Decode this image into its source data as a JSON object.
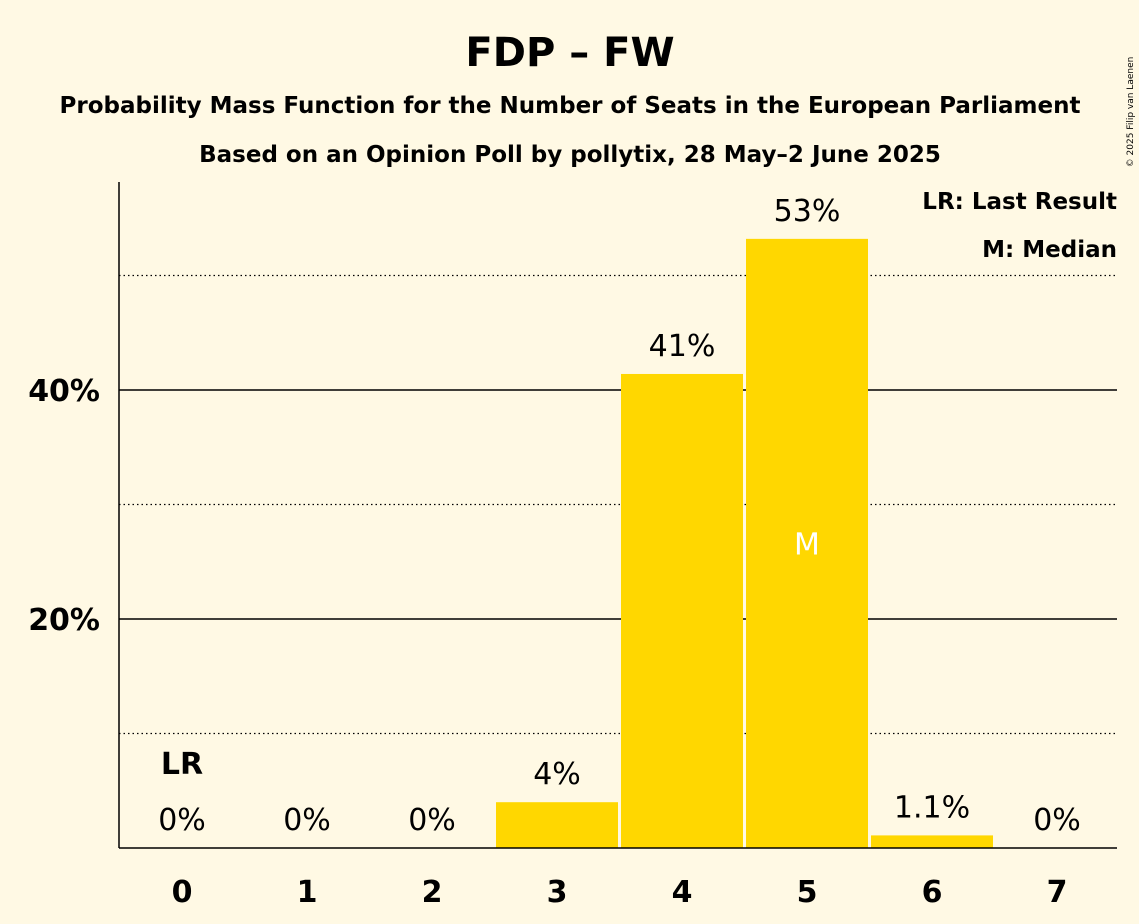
{
  "chart_data": {
    "type": "bar",
    "title": "FDP – FW",
    "subtitle": "Probability Mass Function for the Number of Seats in the European Parliament",
    "subtitle2": "Based on an Opinion Poll by pollytix, 28 May–2 June 2025",
    "copyright": "© 2025 Filip van Laenen",
    "categories": [
      "0",
      "1",
      "2",
      "3",
      "4",
      "5",
      "6",
      "7"
    ],
    "values": [
      0,
      0,
      0,
      4,
      41.4,
      53.2,
      1.1,
      0
    ],
    "value_labels": [
      "0%",
      "0%",
      "0%",
      "4%",
      "41%",
      "53%",
      "1.1%",
      "0%"
    ],
    "ylim": [
      0,
      58
    ],
    "yticks": [
      20,
      40
    ],
    "ytick_labels": [
      "20%",
      "40%"
    ],
    "minor_gridlines": [
      10,
      30,
      50
    ],
    "last_result_index": 0,
    "last_result_marker": "LR",
    "median_index": 5,
    "median_marker": "M",
    "legend": [
      "LR: Last Result",
      "M: Median"
    ],
    "legend_position": "top-right",
    "bar_color": "#FFD700",
    "background_color": "#FFF9E4"
  }
}
